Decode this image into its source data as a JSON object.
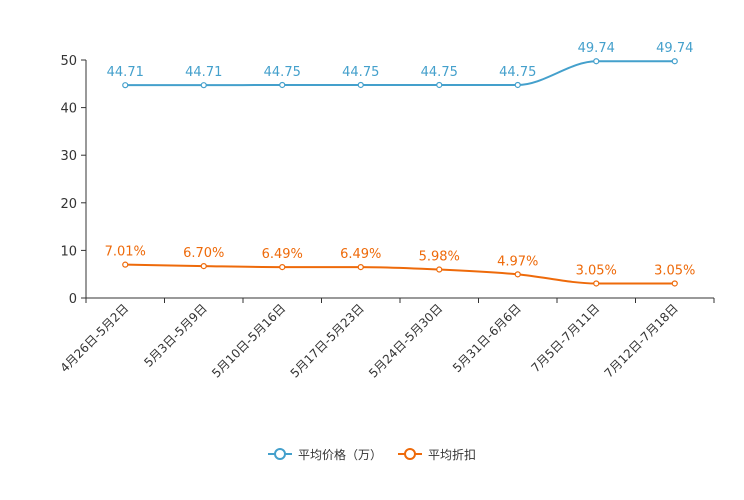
{
  "chart_data": {
    "type": "line",
    "categories": [
      "4月26日-5月2日",
      "5月3日-5月9日",
      "5月10日-5月16日",
      "5月17日-5月23日",
      "5月24日-5月30日",
      "5月31日-6月6日",
      "7月5日-7月11日",
      "7月12日-7月18日"
    ],
    "series": [
      {
        "name": "平均价格（万）",
        "color": "#44a0cc",
        "values": [
          44.71,
          44.71,
          44.75,
          44.75,
          44.75,
          44.75,
          49.74,
          49.74
        ],
        "labels": [
          "44.71",
          "44.71",
          "44.75",
          "44.75",
          "44.75",
          "44.75",
          "49.74",
          "49.74"
        ]
      },
      {
        "name": "平均折扣",
        "color": "#ee6a0a",
        "values": [
          7.01,
          6.7,
          6.49,
          6.49,
          5.98,
          4.97,
          3.05,
          3.05
        ],
        "labels": [
          "7.01%",
          "6.70%",
          "6.49%",
          "6.49%",
          "5.98%",
          "4.97%",
          "3.05%",
          "3.05%"
        ]
      }
    ],
    "ylim": [
      0,
      50
    ],
    "yticks": [
      "0",
      "10",
      "20",
      "30",
      "40",
      "50"
    ],
    "grid": false,
    "legend_position": "bottom-center",
    "title": "",
    "xlabel": "",
    "ylabel": ""
  }
}
